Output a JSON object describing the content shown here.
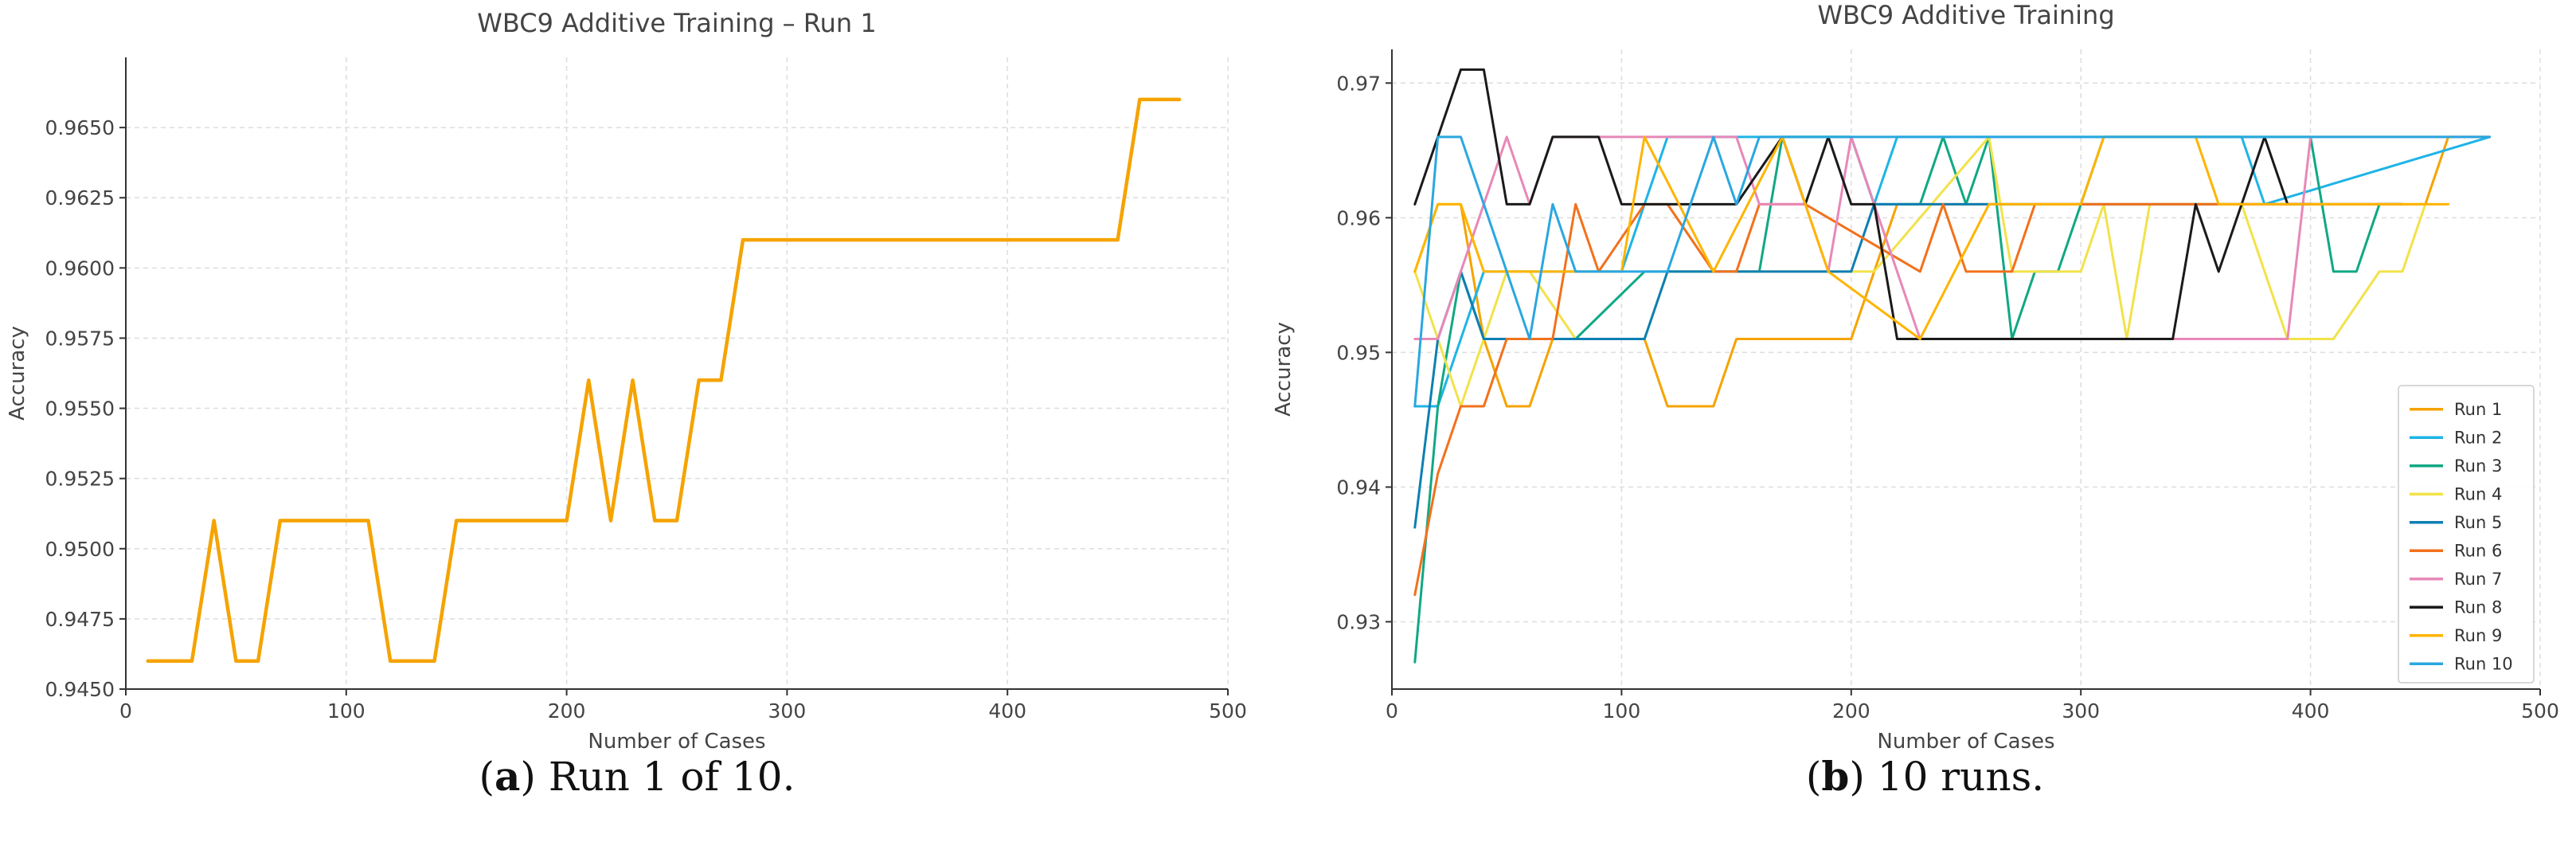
{
  "chart_data": [
    {
      "type": "line",
      "title": "WBC9 Additive Training – Run 1",
      "xlabel": "Number of Cases",
      "ylabel": "Accuracy",
      "xlim": [
        0,
        500
      ],
      "ylim": [
        0.945,
        0.9675
      ],
      "xticks": [
        0,
        100,
        200,
        300,
        400,
        500
      ],
      "yticks": [
        0.945,
        0.9475,
        0.95,
        0.9525,
        0.955,
        0.9575,
        0.96,
        0.9625,
        0.965
      ],
      "ytick_labels": [
        "0.9450",
        "0.9475",
        "0.9500",
        "0.9525",
        "0.9550",
        "0.9575",
        "0.9600",
        "0.9625",
        "0.9650"
      ],
      "grid": true,
      "legend": "none",
      "series": [
        {
          "color": "#f5a300",
          "x": [
            10,
            30,
            40,
            50,
            60,
            70,
            110,
            120,
            140,
            150,
            200,
            210,
            220,
            230,
            240,
            250,
            260,
            270,
            280,
            450,
            460,
            478
          ],
          "y": [
            0.946,
            0.946,
            0.951,
            0.946,
            0.946,
            0.951,
            0.951,
            0.946,
            0.946,
            0.951,
            0.951,
            0.956,
            0.951,
            0.956,
            0.951,
            0.951,
            0.956,
            0.956,
            0.961,
            0.961,
            0.966,
            0.966
          ]
        }
      ]
    },
    {
      "type": "line",
      "title": "WBC9 Additive Training",
      "xlabel": "Number of Cases",
      "ylabel": "Accuracy",
      "xlim": [
        0,
        500
      ],
      "ylim": [
        0.925,
        0.9725
      ],
      "xticks": [
        0,
        100,
        200,
        300,
        400,
        500
      ],
      "yticks": [
        0.93,
        0.94,
        0.95,
        0.96,
        0.97
      ],
      "ytick_labels": [
        "0.93",
        "0.94",
        "0.95",
        "0.96",
        "0.97"
      ],
      "grid": true,
      "legend": "lower-right",
      "series": [
        {
          "name": "Run 1",
          "color": "#f5a300",
          "x": [
            10,
            20,
            30,
            40,
            50,
            60,
            70,
            100,
            110,
            120,
            140,
            150,
            200,
            220,
            440,
            450,
            460,
            478
          ],
          "y": [
            0.956,
            0.961,
            0.961,
            0.951,
            0.946,
            0.946,
            0.951,
            0.951,
            0.951,
            0.946,
            0.946,
            0.951,
            0.951,
            0.961,
            0.961,
            0.961,
            0.966,
            0.966
          ]
        },
        {
          "name": "Run 2",
          "color": "#1eb4e6",
          "x": [
            10,
            20,
            40,
            70,
            90,
            100,
            110,
            120,
            130,
            200,
            210,
            220,
            370,
            380,
            478
          ],
          "y": [
            0.946,
            0.946,
            0.956,
            0.956,
            0.956,
            0.956,
            0.961,
            0.966,
            0.966,
            0.966,
            0.961,
            0.966,
            0.966,
            0.961,
            0.966
          ]
        },
        {
          "name": "Run 3",
          "color": "#10a884",
          "x": [
            10,
            20,
            30,
            40,
            80,
            110,
            160,
            170,
            200,
            210,
            220,
            230,
            240,
            250,
            260,
            270,
            280,
            290,
            310,
            320,
            400,
            410,
            420,
            430,
            440
          ],
          "y": [
            0.927,
            0.946,
            0.956,
            0.951,
            0.951,
            0.956,
            0.956,
            0.966,
            0.966,
            0.961,
            0.961,
            0.961,
            0.966,
            0.961,
            0.966,
            0.951,
            0.956,
            0.956,
            0.966,
            0.966,
            0.966,
            0.956,
            0.956,
            0.961,
            0.961
          ]
        },
        {
          "name": "Run 4",
          "color": "#f2e24a",
          "x": [
            10,
            20,
            30,
            40,
            50,
            60,
            80,
            90,
            110,
            120,
            170,
            200,
            210,
            260,
            270,
            280,
            300,
            310,
            320,
            330,
            370,
            380,
            390,
            400,
            410,
            430,
            440,
            450
          ],
          "y": [
            0.956,
            0.951,
            0.946,
            0.951,
            0.956,
            0.956,
            0.951,
            0.951,
            0.951,
            0.956,
            0.956,
            0.956,
            0.956,
            0.966,
            0.956,
            0.956,
            0.956,
            0.961,
            0.951,
            0.961,
            0.961,
            0.956,
            0.951,
            0.951,
            0.951,
            0.956,
            0.956,
            0.961
          ]
        },
        {
          "name": "Run 5",
          "color": "#0d7fb3",
          "x": [
            10,
            20,
            30,
            40,
            50,
            70,
            80,
            90,
            100,
            110,
            120,
            200,
            210,
            220,
            230,
            330,
            340,
            350,
            360,
            440
          ],
          "y": [
            0.937,
            0.951,
            0.956,
            0.951,
            0.951,
            0.951,
            0.951,
            0.951,
            0.951,
            0.951,
            0.956,
            0.956,
            0.961,
            0.961,
            0.961,
            0.961,
            0.961,
            0.961,
            0.961,
            0.961
          ]
        },
        {
          "name": "Run 6",
          "color": "#f2711c",
          "x": [
            10,
            20,
            30,
            40,
            50,
            70,
            80,
            90,
            110,
            120,
            140,
            150,
            160,
            170,
            180,
            230,
            240,
            250,
            260,
            270,
            280,
            290,
            440
          ],
          "y": [
            0.932,
            0.941,
            0.946,
            0.946,
            0.951,
            0.951,
            0.961,
            0.956,
            0.961,
            0.961,
            0.956,
            0.956,
            0.961,
            0.961,
            0.961,
            0.956,
            0.961,
            0.956,
            0.956,
            0.956,
            0.961,
            0.961,
            0.961
          ]
        },
        {
          "name": "Run 7",
          "color": "#e888b8",
          "x": [
            10,
            20,
            30,
            40,
            50,
            60,
            70,
            90,
            150,
            160,
            180,
            190,
            200,
            220,
            230,
            380,
            390,
            400,
            478
          ],
          "y": [
            0.951,
            0.951,
            0.956,
            0.961,
            0.966,
            0.961,
            0.966,
            0.966,
            0.966,
            0.961,
            0.961,
            0.956,
            0.966,
            0.956,
            0.951,
            0.951,
            0.951,
            0.966,
            0.966
          ]
        },
        {
          "name": "Run 8",
          "color": "#1a1a1a",
          "x": [
            10,
            20,
            30,
            40,
            50,
            60,
            70,
            90,
            100,
            120,
            150,
            170,
            180,
            190,
            200,
            210,
            220,
            250,
            340,
            350,
            360,
            370,
            380,
            390,
            400
          ],
          "y": [
            0.961,
            0.966,
            0.971,
            0.971,
            0.961,
            0.961,
            0.966,
            0.966,
            0.961,
            0.961,
            0.961,
            0.966,
            0.961,
            0.966,
            0.961,
            0.961,
            0.951,
            0.951,
            0.951,
            0.961,
            0.956,
            0.961,
            0.966,
            0.961,
            0.961
          ]
        },
        {
          "name": "Run 9",
          "color": "#ffb400",
          "x": [
            10,
            20,
            30,
            40,
            60,
            100,
            110,
            140,
            170,
            180,
            190,
            230,
            260,
            300,
            310,
            350,
            360,
            400,
            450,
            460
          ],
          "y": [
            0.956,
            0.961,
            0.961,
            0.956,
            0.956,
            0.956,
            0.966,
            0.956,
            0.966,
            0.961,
            0.956,
            0.951,
            0.961,
            0.961,
            0.966,
            0.966,
            0.961,
            0.961,
            0.961,
            0.961
          ]
        },
        {
          "name": "Run 10",
          "color": "#2aa7e0",
          "x": [
            10,
            20,
            30,
            40,
            50,
            60,
            70,
            80,
            120,
            130,
            140,
            150,
            160,
            200,
            210,
            478
          ],
          "y": [
            0.946,
            0.966,
            0.966,
            0.961,
            0.956,
            0.951,
            0.961,
            0.956,
            0.956,
            0.961,
            0.966,
            0.961,
            0.966,
            0.966,
            0.966,
            0.966
          ]
        }
      ]
    }
  ],
  "captions": [
    {
      "letter": "a",
      "text": " Run 1 of 10."
    },
    {
      "letter": "b",
      "text": " 10 runs."
    }
  ]
}
